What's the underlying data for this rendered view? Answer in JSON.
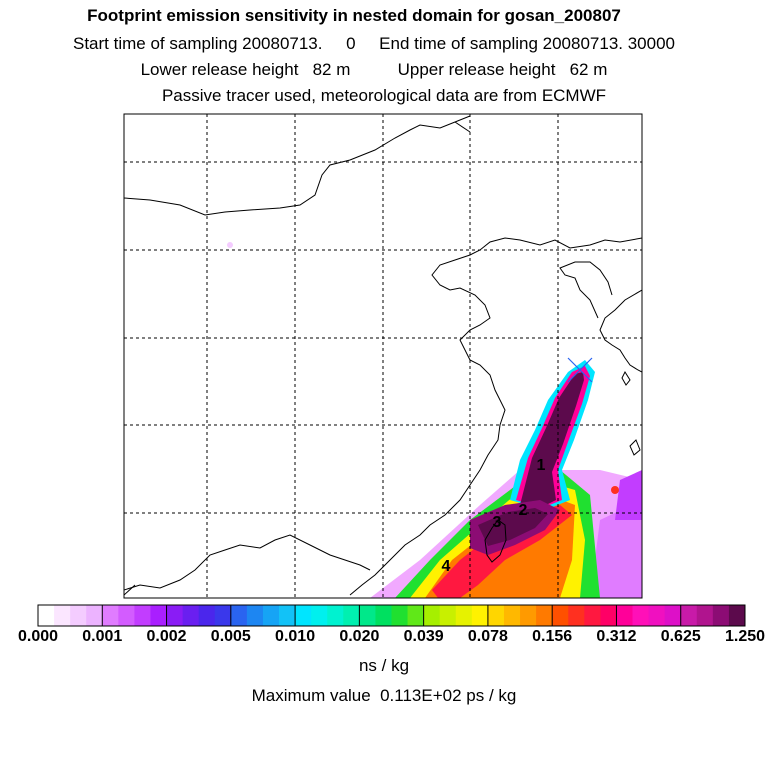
{
  "header": {
    "title": "Footprint emission sensitivity in nested domain for gosan_200807",
    "sampling_line": "Start time of sampling 20080713.     0     End time of sampling 20080713. 30000",
    "release_line": "Lower release height   82 m          Upper release height   62 m",
    "tracer_line": "Passive tracer used, meteorological data are from ECMWF"
  },
  "map": {
    "markers": [
      "1",
      "2",
      "3",
      "4"
    ]
  },
  "colorbar": {
    "tick_labels": [
      "0.000",
      "0.001",
      "0.002",
      "0.005",
      "0.010",
      "0.020",
      "0.039",
      "0.078",
      "0.156",
      "0.312",
      "0.625",
      "1.250"
    ],
    "colors": [
      "#ffffff",
      "#fbe6ff",
      "#f4ccff",
      "#ecb3ff",
      "#e07cff",
      "#d35cff",
      "#c23dff",
      "#a91fff",
      "#8a1cf5",
      "#6a1ff0",
      "#4b26ec",
      "#3a38eb",
      "#2a64f0",
      "#1d86f2",
      "#16a4f5",
      "#12c2f7",
      "#00e5ff",
      "#00f0ee",
      "#00f2d0",
      "#00f0b0",
      "#00e88a",
      "#00e060",
      "#20e030",
      "#60e818",
      "#a6ef00",
      "#c8f000",
      "#e6f200",
      "#fff200",
      "#ffd600",
      "#ffb800",
      "#ff9a00",
      "#ff7a00",
      "#ff5000",
      "#ff3020",
      "#ff1840",
      "#ff0066",
      "#ff0099",
      "#ff10b8",
      "#f010c0",
      "#dd10c8",
      "#c81aa8",
      "#b0148e",
      "#8c0c74",
      "#5c0a4c"
    ],
    "unit": "ns / kg"
  },
  "footer": {
    "max_value_text": "Maximum value  0.113E+02 ps / kg"
  }
}
